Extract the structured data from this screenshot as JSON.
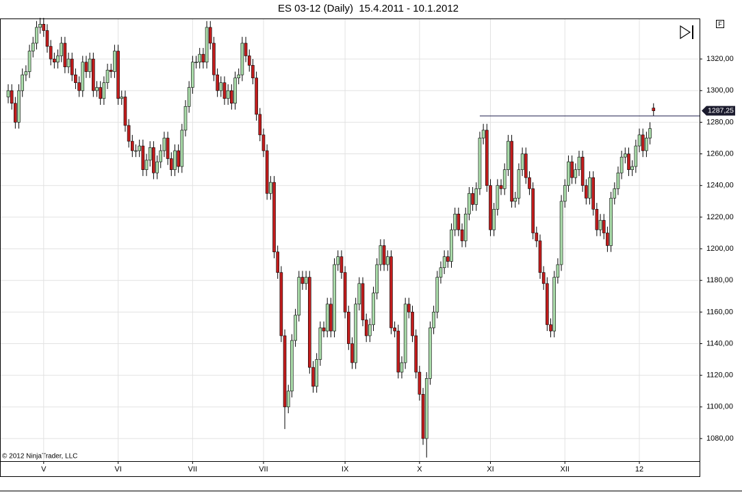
{
  "chart_data": {
    "type": "candlestick",
    "title": "ES 03-12 (Daily)  15.4.2011 - 10.1.2012",
    "copyright": "© 2012 NinjaTrader, LLC",
    "panel_button": "F",
    "up_color": "#a9dba9",
    "down_color": "#c21d1d",
    "grid": true,
    "ylim": [
      1065.7,
      1345.6
    ],
    "yticks": [
      {
        "value": 1080,
        "label": "1080,00"
      },
      {
        "value": 1100,
        "label": "1100,00"
      },
      {
        "value": 1120,
        "label": "1120,00"
      },
      {
        "value": 1140,
        "label": "1140,00"
      },
      {
        "value": 1160,
        "label": "1160,00"
      },
      {
        "value": 1180,
        "label": "1180,00"
      },
      {
        "value": 1200,
        "label": "1200,00"
      },
      {
        "value": 1220,
        "label": "1220,00"
      },
      {
        "value": 1240,
        "label": "1240,00"
      },
      {
        "value": 1260,
        "label": "1260,00"
      },
      {
        "value": 1280,
        "label": "1280,00"
      },
      {
        "value": 1300,
        "label": "1300,00"
      },
      {
        "value": 1320,
        "label": "1320,00"
      }
    ],
    "categories": [
      null,
      null,
      null,
      null,
      null,
      null,
      null,
      null,
      null,
      null,
      "V",
      null,
      null,
      null,
      null,
      null,
      null,
      null,
      null,
      null,
      null,
      null,
      null,
      null,
      null,
      null,
      null,
      null,
      null,
      null,
      null,
      "VI",
      null,
      null,
      null,
      null,
      null,
      null,
      null,
      null,
      null,
      null,
      null,
      null,
      null,
      null,
      null,
      null,
      null,
      null,
      null,
      null,
      "VII",
      null,
      null,
      null,
      null,
      null,
      null,
      null,
      null,
      null,
      null,
      null,
      null,
      null,
      null,
      null,
      null,
      null,
      null,
      null,
      "VII",
      null,
      null,
      null,
      null,
      null,
      null,
      null,
      null,
      null,
      null,
      null,
      null,
      null,
      null,
      null,
      null,
      null,
      null,
      null,
      null,
      null,
      null,
      "IX",
      null,
      null,
      null,
      null,
      null,
      null,
      null,
      null,
      null,
      null,
      null,
      null,
      null,
      null,
      null,
      null,
      null,
      null,
      null,
      null,
      "X",
      null,
      null,
      null,
      null,
      null,
      null,
      null,
      null,
      null,
      null,
      null,
      null,
      null,
      null,
      null,
      null,
      null,
      null,
      null,
      "XI",
      null,
      null,
      null,
      null,
      null,
      null,
      null,
      null,
      null,
      null,
      null,
      null,
      null,
      null,
      null,
      null,
      null,
      null,
      null,
      null,
      "XII",
      null,
      null,
      null,
      null,
      null,
      null,
      null,
      null,
      null,
      null,
      null,
      null,
      null,
      null,
      null,
      null,
      null,
      null,
      null,
      null,
      "12",
      null,
      null,
      null,
      null
    ],
    "open": [
      1296,
      1300,
      1292,
      1280,
      1300,
      1310,
      1312,
      1325,
      1330,
      1340,
      1342,
      1338,
      1328,
      1320,
      1318,
      1322,
      1330,
      1315,
      1320,
      1310,
      1305,
      1300,
      1318,
      1312,
      1320,
      1300,
      1302,
      1295,
      1305,
      1313,
      1312,
      1325,
      1295,
      1296,
      1278,
      1268,
      1262,
      1262,
      1265,
      1250,
      1256,
      1264,
      1248,
      1255,
      1262,
      1270,
      1257,
      1250,
      1262,
      1252,
      1275,
      1290,
      1302,
      1318,
      1318,
      1323,
      1318,
      1340,
      1330,
      1310,
      1300,
      1305,
      1295,
      1300,
      1292,
      1308,
      1310,
      1330,
      1322,
      1316,
      1308,
      1285,
      1272,
      1262,
      1235,
      1242,
      1198,
      1185,
      1145,
      1100,
      1110,
      1142,
      1158,
      1182,
      1178,
      1182,
      1125,
      1113,
      1130,
      1150,
      1148,
      1165,
      1148,
      1190,
      1195,
      1185,
      1160,
      1140,
      1128,
      1165,
      1178,
      1155,
      1145,
      1152,
      1172,
      1190,
      1202,
      1190,
      1195,
      1150,
      1148,
      1122,
      1128,
      1165,
      1160,
      1145,
      1122,
      1108,
      1080,
      1118,
      1150,
      1160,
      1182,
      1188,
      1195,
      1192,
      1212,
      1222,
      1212,
      1205,
      1222,
      1235,
      1228,
      1238,
      1270,
      1275,
      1240,
      1212,
      1225,
      1240,
      1238,
      1250,
      1268,
      1230,
      1232,
      1250,
      1260,
      1245,
      1238,
      1210,
      1205,
      1185,
      1178,
      1152,
      1148,
      1182,
      1190,
      1230,
      1240,
      1255,
      1245,
      1250,
      1258,
      1240,
      1232,
      1245,
      1225,
      1212,
      1218,
      1210,
      1202,
      1232,
      1238,
      1248,
      1258,
      1260,
      1250,
      1252,
      1265,
      1272,
      1262,
      1270,
      1289
    ],
    "high": [
      1304,
      1304,
      1296,
      1304,
      1314,
      1316,
      1329,
      1334,
      1344,
      1346,
      1346,
      1342,
      1332,
      1324,
      1326,
      1334,
      1334,
      1324,
      1324,
      1314,
      1309,
      1322,
      1322,
      1324,
      1324,
      1306,
      1306,
      1309,
      1317,
      1317,
      1329,
      1329,
      1300,
      1300,
      1282,
      1272,
      1266,
      1269,
      1269,
      1260,
      1268,
      1268,
      1259,
      1266,
      1274,
      1274,
      1261,
      1266,
      1266,
      1279,
      1294,
      1306,
      1322,
      1322,
      1327,
      1327,
      1344,
      1344,
      1334,
      1314,
      1309,
      1309,
      1304,
      1304,
      1312,
      1314,
      1334,
      1334,
      1326,
      1320,
      1312,
      1289,
      1276,
      1266,
      1246,
      1246,
      1202,
      1189,
      1149,
      1114,
      1146,
      1162,
      1186,
      1186,
      1186,
      1186,
      1129,
      1134,
      1154,
      1154,
      1169,
      1169,
      1194,
      1199,
      1199,
      1189,
      1164,
      1144,
      1169,
      1182,
      1182,
      1159,
      1156,
      1176,
      1194,
      1206,
      1206,
      1199,
      1199,
      1154,
      1152,
      1132,
      1169,
      1169,
      1164,
      1149,
      1126,
      1112,
      1122,
      1154,
      1164,
      1186,
      1192,
      1199,
      1199,
      1216,
      1226,
      1226,
      1216,
      1226,
      1239,
      1239,
      1242,
      1274,
      1279,
      1279,
      1244,
      1229,
      1244,
      1244,
      1254,
      1272,
      1272,
      1236,
      1254,
      1264,
      1264,
      1249,
      1242,
      1214,
      1209,
      1189,
      1182,
      1156,
      1186,
      1194,
      1234,
      1244,
      1259,
      1259,
      1254,
      1262,
      1262,
      1244,
      1249,
      1249,
      1229,
      1222,
      1222,
      1214,
      1236,
      1242,
      1252,
      1262,
      1264,
      1264,
      1256,
      1269,
      1276,
      1276,
      1274,
      1280,
      1292
    ],
    "low": [
      1292,
      1288,
      1276,
      1276,
      1296,
      1306,
      1308,
      1321,
      1326,
      1336,
      1334,
      1324,
      1316,
      1314,
      1314,
      1318,
      1311,
      1311,
      1306,
      1301,
      1296,
      1296,
      1308,
      1308,
      1296,
      1296,
      1291,
      1291,
      1301,
      1308,
      1308,
      1291,
      1291,
      1274,
      1264,
      1258,
      1258,
      1258,
      1246,
      1246,
      1252,
      1244,
      1244,
      1251,
      1258,
      1253,
      1246,
      1246,
      1248,
      1248,
      1271,
      1286,
      1298,
      1314,
      1314,
      1314,
      1314,
      1326,
      1306,
      1296,
      1296,
      1291,
      1291,
      1288,
      1288,
      1304,
      1306,
      1318,
      1312,
      1304,
      1281,
      1268,
      1258,
      1231,
      1231,
      1194,
      1181,
      1141,
      1086,
      1096,
      1106,
      1138,
      1154,
      1174,
      1174,
      1121,
      1109,
      1109,
      1126,
      1144,
      1144,
      1144,
      1144,
      1186,
      1181,
      1156,
      1136,
      1124,
      1124,
      1161,
      1151,
      1141,
      1141,
      1148,
      1168,
      1186,
      1186,
      1186,
      1146,
      1144,
      1118,
      1118,
      1124,
      1156,
      1141,
      1118,
      1104,
      1076,
      1068,
      1114,
      1146,
      1156,
      1178,
      1184,
      1188,
      1188,
      1208,
      1208,
      1201,
      1201,
      1218,
      1224,
      1224,
      1234,
      1266,
      1236,
      1208,
      1208,
      1221,
      1234,
      1234,
      1246,
      1226,
      1226,
      1228,
      1246,
      1241,
      1234,
      1206,
      1201,
      1181,
      1174,
      1148,
      1144,
      1144,
      1178,
      1186,
      1226,
      1236,
      1241,
      1241,
      1246,
      1236,
      1228,
      1228,
      1221,
      1208,
      1208,
      1206,
      1198,
      1198,
      1228,
      1234,
      1244,
      1254,
      1246,
      1246,
      1248,
      1261,
      1258,
      1258,
      1266,
      1284
    ],
    "close": [
      1300,
      1292,
      1280,
      1300,
      1310,
      1312,
      1325,
      1330,
      1340,
      1342,
      1338,
      1328,
      1320,
      1318,
      1322,
      1330,
      1315,
      1320,
      1310,
      1305,
      1300,
      1318,
      1312,
      1320,
      1300,
      1302,
      1295,
      1305,
      1313,
      1312,
      1325,
      1295,
      1296,
      1278,
      1268,
      1262,
      1262,
      1265,
      1250,
      1256,
      1264,
      1248,
      1255,
      1262,
      1270,
      1257,
      1250,
      1262,
      1252,
      1275,
      1290,
      1302,
      1318,
      1318,
      1323,
      1318,
      1340,
      1330,
      1310,
      1300,
      1305,
      1295,
      1300,
      1292,
      1308,
      1310,
      1330,
      1322,
      1316,
      1308,
      1285,
      1272,
      1262,
      1235,
      1242,
      1198,
      1185,
      1145,
      1100,
      1110,
      1142,
      1158,
      1182,
      1178,
      1182,
      1125,
      1113,
      1130,
      1150,
      1148,
      1165,
      1148,
      1190,
      1195,
      1185,
      1160,
      1140,
      1128,
      1165,
      1178,
      1155,
      1145,
      1152,
      1172,
      1190,
      1202,
      1190,
      1195,
      1150,
      1148,
      1122,
      1128,
      1165,
      1160,
      1145,
      1122,
      1108,
      1080,
      1118,
      1150,
      1160,
      1182,
      1188,
      1195,
      1192,
      1212,
      1222,
      1212,
      1205,
      1222,
      1235,
      1228,
      1238,
      1270,
      1275,
      1240,
      1212,
      1225,
      1240,
      1238,
      1250,
      1268,
      1230,
      1232,
      1250,
      1260,
      1245,
      1238,
      1210,
      1205,
      1185,
      1178,
      1152,
      1148,
      1182,
      1190,
      1230,
      1240,
      1255,
      1245,
      1250,
      1258,
      1240,
      1232,
      1245,
      1225,
      1212,
      1218,
      1210,
      1202,
      1232,
      1238,
      1248,
      1258,
      1260,
      1250,
      1252,
      1265,
      1272,
      1262,
      1270,
      1276,
      1287.25
    ],
    "last_price": {
      "value": 1287.25,
      "label": "1287,25"
    },
    "horizontal_line": {
      "value": 1284,
      "from_index": 133
    }
  }
}
